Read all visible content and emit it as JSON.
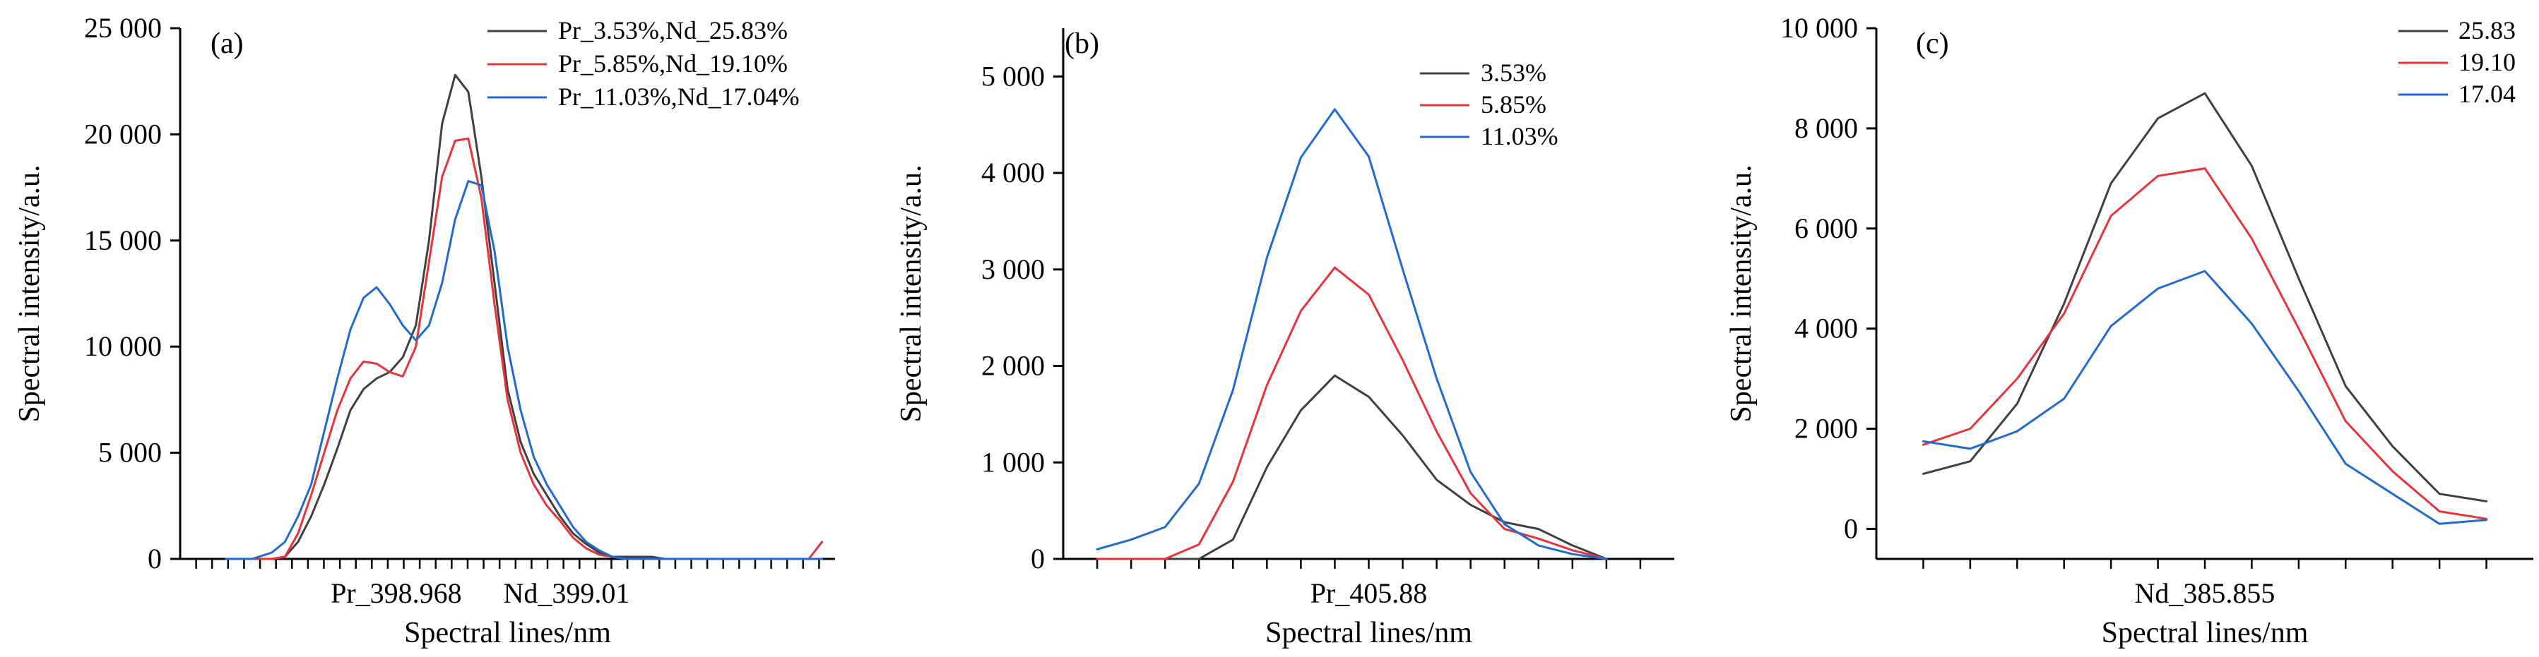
{
  "chart_data": [
    {
      "type": "line",
      "panel_label": "(a)",
      "xlabel": "Spectral lines/nm",
      "ylabel": "Spectral intensity/a.u.",
      "ylim": [
        0,
        25000
      ],
      "yticks": [
        0,
        5000,
        10000,
        15000,
        20000,
        25000
      ],
      "ytick_labels": [
        "0",
        "5 000",
        "10 000",
        "15 000",
        "20 000",
        "25 000"
      ],
      "category_labels": [
        {
          "label": "Pr_398.968",
          "x": 0.33
        },
        {
          "label": "Nd_399.01",
          "x": 0.59
        }
      ],
      "xlim": [
        0,
        1
      ],
      "minor_tick_count": 40,
      "legend_position": "top-right",
      "series": [
        {
          "name": "Pr_3.53%,Nd_25.83%",
          "color": "#404040",
          "x": [
            0.07,
            0.11,
            0.14,
            0.16,
            0.18,
            0.2,
            0.22,
            0.24,
            0.26,
            0.28,
            0.3,
            0.32,
            0.34,
            0.36,
            0.38,
            0.4,
            0.42,
            0.44,
            0.46,
            0.48,
            0.5,
            0.52,
            0.54,
            0.56,
            0.58,
            0.6,
            0.62,
            0.64,
            0.66,
            0.68,
            0.7,
            0.72,
            0.74,
            0.76,
            0.78,
            0.8,
            0.82,
            0.84,
            0.86,
            0.88,
            0.9,
            0.92,
            0.94,
            0.96,
            0.98
          ],
          "y": [
            0,
            0,
            0,
            100,
            800,
            2000,
            3500,
            5200,
            7000,
            8000,
            8500,
            8800,
            9500,
            11000,
            15000,
            20500,
            22800,
            22000,
            18000,
            13000,
            8000,
            5500,
            4000,
            3000,
            2000,
            1200,
            700,
            300,
            100,
            100,
            100,
            100,
            0,
            0,
            0,
            0,
            0,
            0,
            0,
            0,
            0,
            0,
            0,
            0,
            0
          ]
        },
        {
          "name": "Pr_5.85%,Nd_19.10%",
          "color": "#e8333a",
          "x": [
            0.07,
            0.11,
            0.14,
            0.16,
            0.18,
            0.2,
            0.22,
            0.24,
            0.26,
            0.28,
            0.3,
            0.32,
            0.34,
            0.36,
            0.38,
            0.4,
            0.42,
            0.44,
            0.46,
            0.48,
            0.5,
            0.52,
            0.54,
            0.56,
            0.58,
            0.6,
            0.62,
            0.64,
            0.66,
            0.68,
            0.7,
            0.72,
            0.74,
            0.76,
            0.78,
            0.8,
            0.82,
            0.84,
            0.86,
            0.88,
            0.9,
            0.92,
            0.94,
            0.96,
            0.98
          ],
          "y": [
            0,
            0,
            0,
            100,
            1200,
            3000,
            5000,
            7000,
            8500,
            9300,
            9200,
            8800,
            8600,
            10000,
            14000,
            18000,
            19700,
            19800,
            17000,
            12000,
            7500,
            5000,
            3500,
            2500,
            1800,
            1000,
            500,
            200,
            100,
            0,
            0,
            0,
            0,
            0,
            0,
            0,
            0,
            0,
            0,
            0,
            0,
            0,
            0,
            0,
            800
          ]
        },
        {
          "name": "Pr_11.03%,Nd_17.04%",
          "color": "#1f6bd1",
          "x": [
            0.07,
            0.11,
            0.14,
            0.16,
            0.18,
            0.2,
            0.22,
            0.24,
            0.26,
            0.28,
            0.3,
            0.32,
            0.34,
            0.36,
            0.38,
            0.4,
            0.42,
            0.44,
            0.46,
            0.48,
            0.5,
            0.52,
            0.54,
            0.56,
            0.58,
            0.6,
            0.62,
            0.64,
            0.66,
            0.68,
            0.7,
            0.72,
            0.74,
            0.76,
            0.78,
            0.8,
            0.82,
            0.84,
            0.86,
            0.88,
            0.9,
            0.92,
            0.94,
            0.96,
            0.98
          ],
          "y": [
            0,
            0,
            300,
            800,
            2000,
            3500,
            6000,
            8500,
            10800,
            12300,
            12800,
            12000,
            11000,
            10300,
            11000,
            13000,
            16000,
            17800,
            17600,
            14500,
            10000,
            7000,
            4800,
            3500,
            2500,
            1500,
            800,
            400,
            100,
            0,
            0,
            0,
            0,
            0,
            0,
            0,
            0,
            0,
            0,
            0,
            0,
            0,
            0,
            0,
            0
          ]
        }
      ]
    },
    {
      "type": "line",
      "panel_label": "(b)",
      "xlabel": "Spectral lines/nm",
      "ylabel": "Spectral intensity/a.u.",
      "ylim": [
        0,
        5500
      ],
      "yticks": [
        0,
        1000,
        2000,
        3000,
        4000,
        5000
      ],
      "ytick_labels": [
        "0",
        "1 000",
        "2 000",
        "3 000",
        "4 000",
        "5 000"
      ],
      "category_labels": [
        {
          "label": "Pr_405.88",
          "x": 8
        }
      ],
      "xlim": [
        -1,
        17
      ],
      "minor_tick_count": 17,
      "legend_position": "top-right",
      "series": [
        {
          "name": "3.53%",
          "color": "#404040",
          "x": [
            0,
            1,
            2,
            3,
            4,
            5,
            6,
            7,
            8,
            9,
            10,
            11,
            12,
            13,
            14,
            15
          ],
          "y": [
            0,
            0,
            0,
            0,
            200,
            950,
            1540,
            1900,
            1680,
            1280,
            820,
            560,
            380,
            310,
            140,
            0
          ]
        },
        {
          "name": "5.85%",
          "color": "#e8333a",
          "x": [
            0,
            1,
            2,
            3,
            4,
            5,
            6,
            7,
            8,
            9,
            10,
            11,
            12,
            13,
            14,
            15
          ],
          "y": [
            0,
            0,
            0,
            150,
            800,
            1800,
            2570,
            3020,
            2740,
            2060,
            1320,
            680,
            310,
            210,
            90,
            0
          ]
        },
        {
          "name": "11.03%",
          "color": "#1f6bd1",
          "x": [
            0,
            1,
            2,
            3,
            4,
            5,
            6,
            7,
            8,
            9,
            10,
            11,
            12,
            13,
            14,
            15
          ],
          "y": [
            100,
            200,
            330,
            780,
            1750,
            3120,
            4160,
            4660,
            4170,
            3000,
            1870,
            900,
            360,
            140,
            50,
            0
          ]
        }
      ]
    },
    {
      "type": "line",
      "panel_label": "(c)",
      "xlabel": "Spectral lines/nm",
      "ylabel": "Spectral intensity/a.u.",
      "ylim": [
        -600,
        10000
      ],
      "yticks": [
        0,
        2000,
        4000,
        6000,
        8000,
        10000
      ],
      "ytick_labels": [
        "0",
        "2 000",
        "4 000",
        "6 000",
        "8 000",
        "10 000"
      ],
      "category_labels": [
        {
          "label": "Nd_385.855",
          "x": 6
        }
      ],
      "xlim": [
        -1,
        13
      ],
      "minor_tick_count": 13,
      "legend_position": "top-right",
      "series": [
        {
          "name": "25.83",
          "color": "#404040",
          "x": [
            0,
            1,
            2,
            3,
            4,
            5,
            6,
            7,
            8,
            9,
            10,
            11,
            12
          ],
          "y": [
            1100,
            1350,
            2500,
            4500,
            6900,
            8200,
            8700,
            7250,
            5000,
            2850,
            1650,
            700,
            550
          ]
        },
        {
          "name": "19.10",
          "color": "#e8333a",
          "x": [
            0,
            1,
            2,
            3,
            4,
            5,
            6,
            7,
            8,
            9,
            10,
            11,
            12
          ],
          "y": [
            1680,
            2000,
            3000,
            4300,
            6250,
            7050,
            7200,
            5800,
            4000,
            2150,
            1150,
            350,
            200
          ]
        },
        {
          "name": "17.04",
          "color": "#1f6bd1",
          "x": [
            0,
            1,
            2,
            3,
            4,
            5,
            6,
            7,
            8,
            9,
            10,
            11,
            12
          ],
          "y": [
            1750,
            1600,
            1950,
            2600,
            4050,
            4800,
            5150,
            4100,
            2750,
            1300,
            700,
            100,
            180
          ]
        }
      ]
    }
  ]
}
